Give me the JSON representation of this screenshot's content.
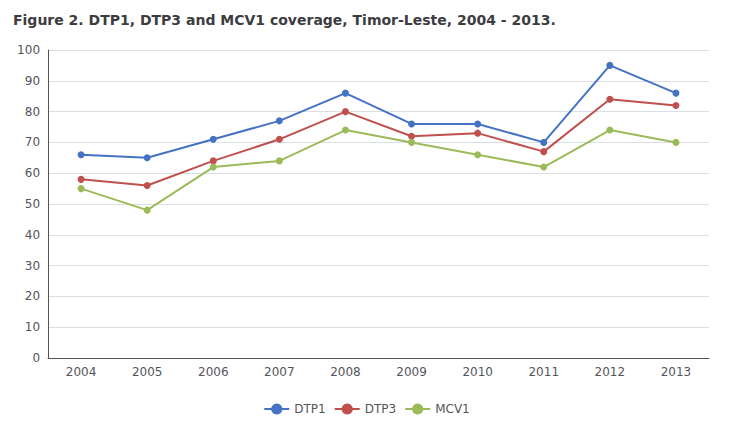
{
  "chart_data": {
    "type": "line",
    "title": "Figure 2. DTP1, DTP3 and MCV1 coverage, Timor-Leste, 2004 - 2013.",
    "categories": [
      "2004",
      "2005",
      "2006",
      "2007",
      "2008",
      "2009",
      "2010",
      "2011",
      "2012",
      "2013"
    ],
    "series": [
      {
        "name": "DTP1",
        "color": "#4472C4",
        "values": [
          66,
          65,
          71,
          77,
          86,
          76,
          76,
          70,
          95,
          86
        ]
      },
      {
        "name": "DTP3",
        "color": "#C0504D",
        "values": [
          58,
          56,
          64,
          71,
          80,
          72,
          73,
          67,
          84,
          82
        ]
      },
      {
        "name": "MCV1",
        "color": "#9BBB59",
        "values": [
          55,
          48,
          62,
          64,
          74,
          70,
          66,
          62,
          74,
          70
        ]
      }
    ],
    "marker": "circle",
    "ylim": [
      0,
      100
    ],
    "yticks": [
      0,
      10,
      20,
      30,
      40,
      50,
      60,
      70,
      80,
      90,
      100
    ],
    "grid": true,
    "legend": "bottom"
  }
}
